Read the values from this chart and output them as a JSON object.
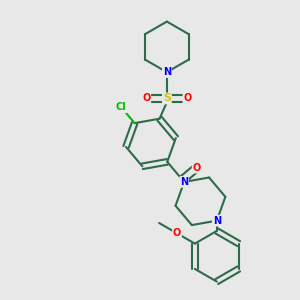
{
  "bg_color": "#e8e8e8",
  "bond_color": "#2d6b4a",
  "bond_width": 1.5,
  "N_color": "#0000ff",
  "O_color": "#ff0000",
  "S_color": "#cccc00",
  "Cl_color": "#00bb00",
  "figsize": [
    3.0,
    3.0
  ],
  "dpi": 100,
  "xlim": [
    -1.6,
    1.6
  ],
  "ylim": [
    -1.6,
    1.6
  ]
}
